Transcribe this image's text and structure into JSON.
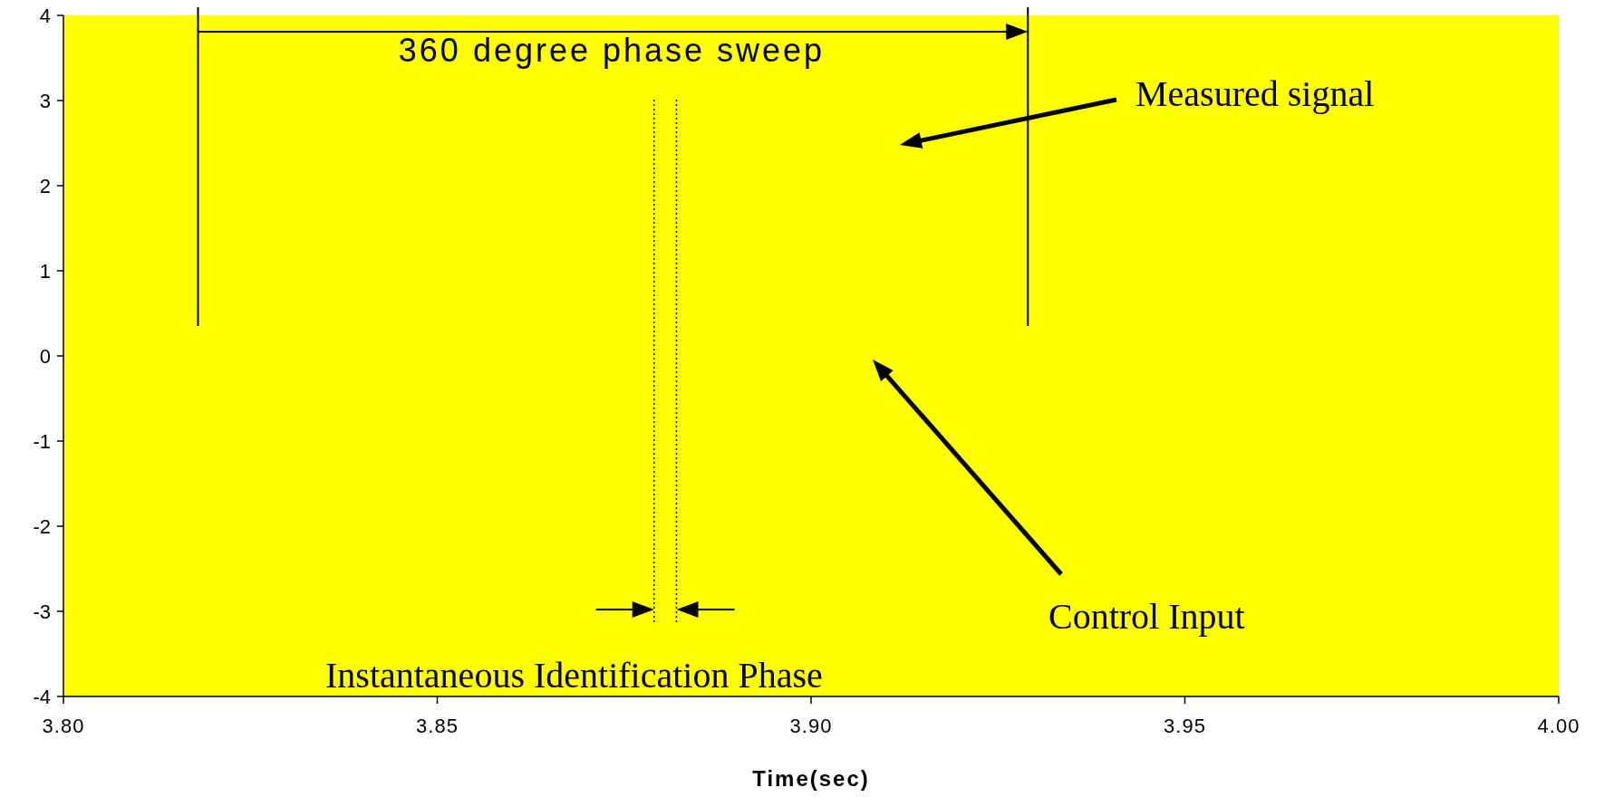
{
  "chart_data": {
    "type": "line",
    "xlabel": "Time(sec)",
    "xlim": [
      3.8,
      4.0
    ],
    "ylim": [
      -4,
      4
    ],
    "xticks": [
      {
        "value": 3.8,
        "label": "3.80"
      },
      {
        "value": 3.85,
        "label": "3.85"
      },
      {
        "value": 3.9,
        "label": "3.90"
      },
      {
        "value": 3.95,
        "label": "3.95"
      },
      {
        "value": 4.0,
        "label": "4.00"
      }
    ],
    "yticks": [
      -4,
      -3,
      -2,
      -1,
      0,
      1,
      2,
      3,
      4
    ],
    "grid": false,
    "ref_lines": [
      {
        "axis": "x",
        "value": 3.818,
        "color": "#000000",
        "line_style": "solid"
      },
      {
        "axis": "x",
        "value": 3.929,
        "color": "#000000",
        "line_style": "solid"
      },
      {
        "axis": "x",
        "value": 3.879,
        "color": "#000000",
        "line_style": "dotted"
      },
      {
        "axis": "x",
        "value": 3.882,
        "color": "#000000",
        "line_style": "dotted"
      }
    ],
    "annotations": [
      "360 degree phase sweep",
      "Measured signal",
      "Control Input",
      "Instantaneous Identification Phase"
    ]
  }
}
